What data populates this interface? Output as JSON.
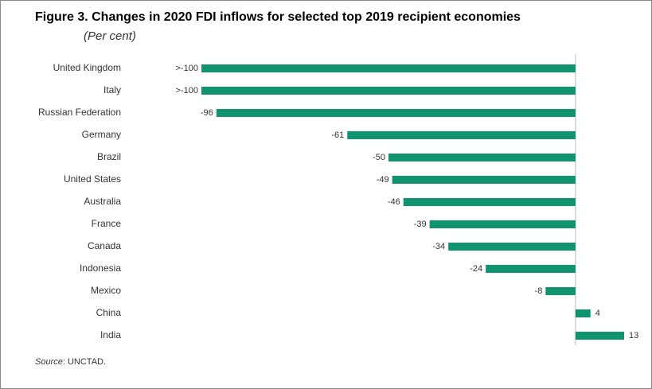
{
  "chart_data": {
    "type": "bar",
    "orientation": "horizontal",
    "title": "Figure 3. Changes in 2020 FDI inflows for selected top 2019 recipient economies",
    "subtitle": "(Per cent)",
    "categories": [
      "United Kingdom",
      "Italy",
      "Russian Federation",
      "Germany",
      "Brazil",
      "United States",
      "Australia",
      "France",
      "Canada",
      "Indonesia",
      "Mexico",
      "China",
      "India"
    ],
    "values": [
      -100,
      -100,
      -96,
      -61,
      -50,
      -49,
      -46,
      -39,
      -34,
      -24,
      -8,
      4,
      13
    ],
    "value_labels": [
      ">-100",
      ">-100",
      "-96",
      "-61",
      "-50",
      "-49",
      "-46",
      "-39",
      "-34",
      "-24",
      "-8",
      "4",
      "13"
    ],
    "color": "#0f9470",
    "xlim": [
      -100,
      13
    ],
    "source": {
      "label": "Source",
      "text": ": UNCTAD."
    }
  }
}
